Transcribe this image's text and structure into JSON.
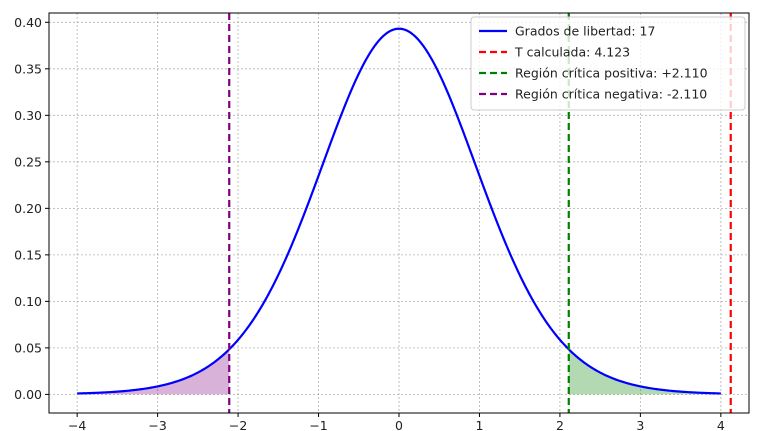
{
  "chart_data": {
    "type": "line",
    "title": "",
    "xlabel": "",
    "ylabel": "",
    "xlim": [
      -4.35,
      4.35
    ],
    "ylim": [
      -0.02,
      0.41
    ],
    "grid": true,
    "legend_position": "top-right",
    "x_ticks": [
      -4,
      -3,
      -2,
      -1,
      0,
      1,
      2,
      3,
      4
    ],
    "x_tick_labels": [
      "−4",
      "−3",
      "−2",
      "−1",
      "0",
      "1",
      "2",
      "3",
      "4"
    ],
    "y_ticks": [
      0.0,
      0.05,
      0.1,
      0.15,
      0.2,
      0.25,
      0.3,
      0.35,
      0.4
    ],
    "y_tick_labels": [
      "0.00",
      "0.05",
      "0.10",
      "0.15",
      "0.20",
      "0.25",
      "0.30",
      "0.35",
      "0.40"
    ],
    "distribution": {
      "name": "t-student",
      "df": 17,
      "x_range": [
        -4,
        4
      ]
    },
    "series": [
      {
        "name": "Grados de libertad: 17",
        "kind": "curve",
        "color": "#0000ff",
        "style": "solid"
      },
      {
        "name": "T calculada: 4.123",
        "kind": "vline",
        "x": 4.123,
        "color": "#ff0000",
        "style": "dashed"
      },
      {
        "name": "Región crítica positiva: +2.110",
        "kind": "vline",
        "x": 2.11,
        "color": "#008000",
        "style": "dashed"
      },
      {
        "name": "Región crítica negativa: -2.110",
        "kind": "vline",
        "x": -2.11,
        "color": "#800080",
        "style": "dashed"
      }
    ],
    "shaded_regions": [
      {
        "from": -4,
        "to": -2.11,
        "color": "#800080",
        "opacity": 0.3
      },
      {
        "from": 2.11,
        "to": 4,
        "color": "#008000",
        "opacity": 0.3
      }
    ]
  }
}
